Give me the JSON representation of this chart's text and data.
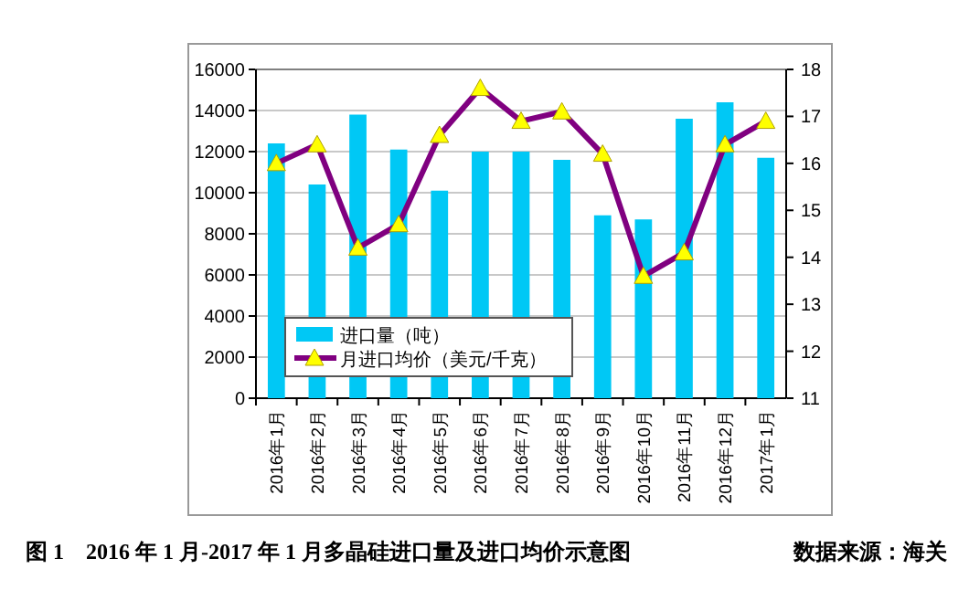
{
  "chart_data": {
    "type": "bar",
    "title": "图 1　2016 年 1 月-2017 年 1 月多晶硅进口量及进口均价示意图",
    "annotations": [
      "数据来源：海关"
    ],
    "categories": [
      "2016年1月",
      "2016年2月",
      "2016年3月",
      "2016年4月",
      "2016年5月",
      "2016年6月",
      "2016年7月",
      "2016年8月",
      "2016年9月",
      "2016年10月",
      "2016年11月",
      "2016年12月",
      "2017年1月"
    ],
    "series": [
      {
        "name": "进口量（吨）",
        "color": "#00c8f5",
        "values": [
          12400,
          10400,
          13800,
          12100,
          10100,
          12000,
          12000,
          11600,
          8900,
          8700,
          13600,
          14400,
          11700
        ]
      },
      {
        "name": "月进口均价（美元/千克）",
        "type": "line",
        "axis": "y2",
        "color": "#800080",
        "marker": "triangle",
        "values": [
          16.0,
          16.4,
          14.2,
          14.7,
          16.6,
          17.6,
          16.9,
          17.1,
          16.2,
          13.6,
          14.1,
          16.4,
          16.9
        ]
      }
    ],
    "ylim": [
      0,
      16000
    ],
    "yticks": [
      0,
      2000,
      4000,
      6000,
      8000,
      10000,
      12000,
      14000,
      16000
    ],
    "y2lim": [
      11,
      18
    ],
    "y2ticks": [
      11,
      12,
      13,
      14,
      15,
      16,
      17,
      18
    ],
    "grid": "y",
    "legend": "bottom left"
  }
}
